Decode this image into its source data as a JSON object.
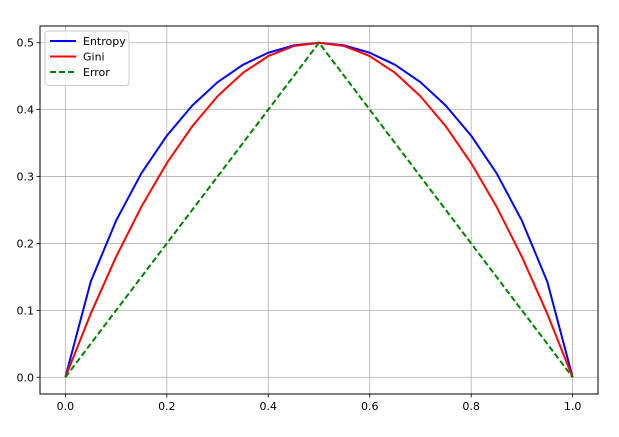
{
  "chart_data": {
    "type": "line",
    "title": "",
    "xlabel": "",
    "ylabel": "",
    "xlim": [
      -0.05,
      1.05
    ],
    "ylim": [
      -0.025,
      0.525
    ],
    "xticks": [
      0.0,
      0.2,
      0.4,
      0.6,
      0.8,
      1.0
    ],
    "xtick_labels": [
      "0.0",
      "0.2",
      "0.4",
      "0.6",
      "0.8",
      "1.0"
    ],
    "yticks": [
      0.0,
      0.1,
      0.2,
      0.3,
      0.4,
      0.5
    ],
    "ytick_labels": [
      "0.0",
      "0.1",
      "0.2",
      "0.3",
      "0.4",
      "0.5"
    ],
    "grid": true,
    "legend_position": "top-left",
    "series": [
      {
        "name": "Entropy",
        "color": "#0000ff",
        "style": "solid",
        "x": [
          0.0,
          0.05,
          0.1,
          0.15,
          0.2,
          0.25,
          0.3,
          0.35,
          0.4,
          0.45,
          0.5,
          0.55,
          0.6,
          0.65,
          0.7,
          0.75,
          0.8,
          0.85,
          0.9,
          0.95,
          1.0
        ],
        "y": [
          0.0,
          0.143,
          0.234,
          0.305,
          0.361,
          0.406,
          0.441,
          0.467,
          0.485,
          0.496,
          0.5,
          0.496,
          0.485,
          0.467,
          0.441,
          0.406,
          0.361,
          0.305,
          0.234,
          0.143,
          0.0
        ]
      },
      {
        "name": "Gini",
        "color": "#ff0000",
        "style": "solid",
        "x": [
          0.0,
          0.05,
          0.1,
          0.15,
          0.2,
          0.25,
          0.3,
          0.35,
          0.4,
          0.45,
          0.5,
          0.55,
          0.6,
          0.65,
          0.7,
          0.75,
          0.8,
          0.85,
          0.9,
          0.95,
          1.0
        ],
        "y": [
          0.0,
          0.095,
          0.18,
          0.255,
          0.32,
          0.375,
          0.42,
          0.455,
          0.48,
          0.495,
          0.5,
          0.495,
          0.48,
          0.455,
          0.42,
          0.375,
          0.32,
          0.255,
          0.18,
          0.095,
          0.0
        ]
      },
      {
        "name": "Error",
        "color": "#008000",
        "style": "dashed",
        "x": [
          0.0,
          0.5,
          1.0
        ],
        "y": [
          0.0,
          0.5,
          0.0
        ]
      }
    ]
  }
}
